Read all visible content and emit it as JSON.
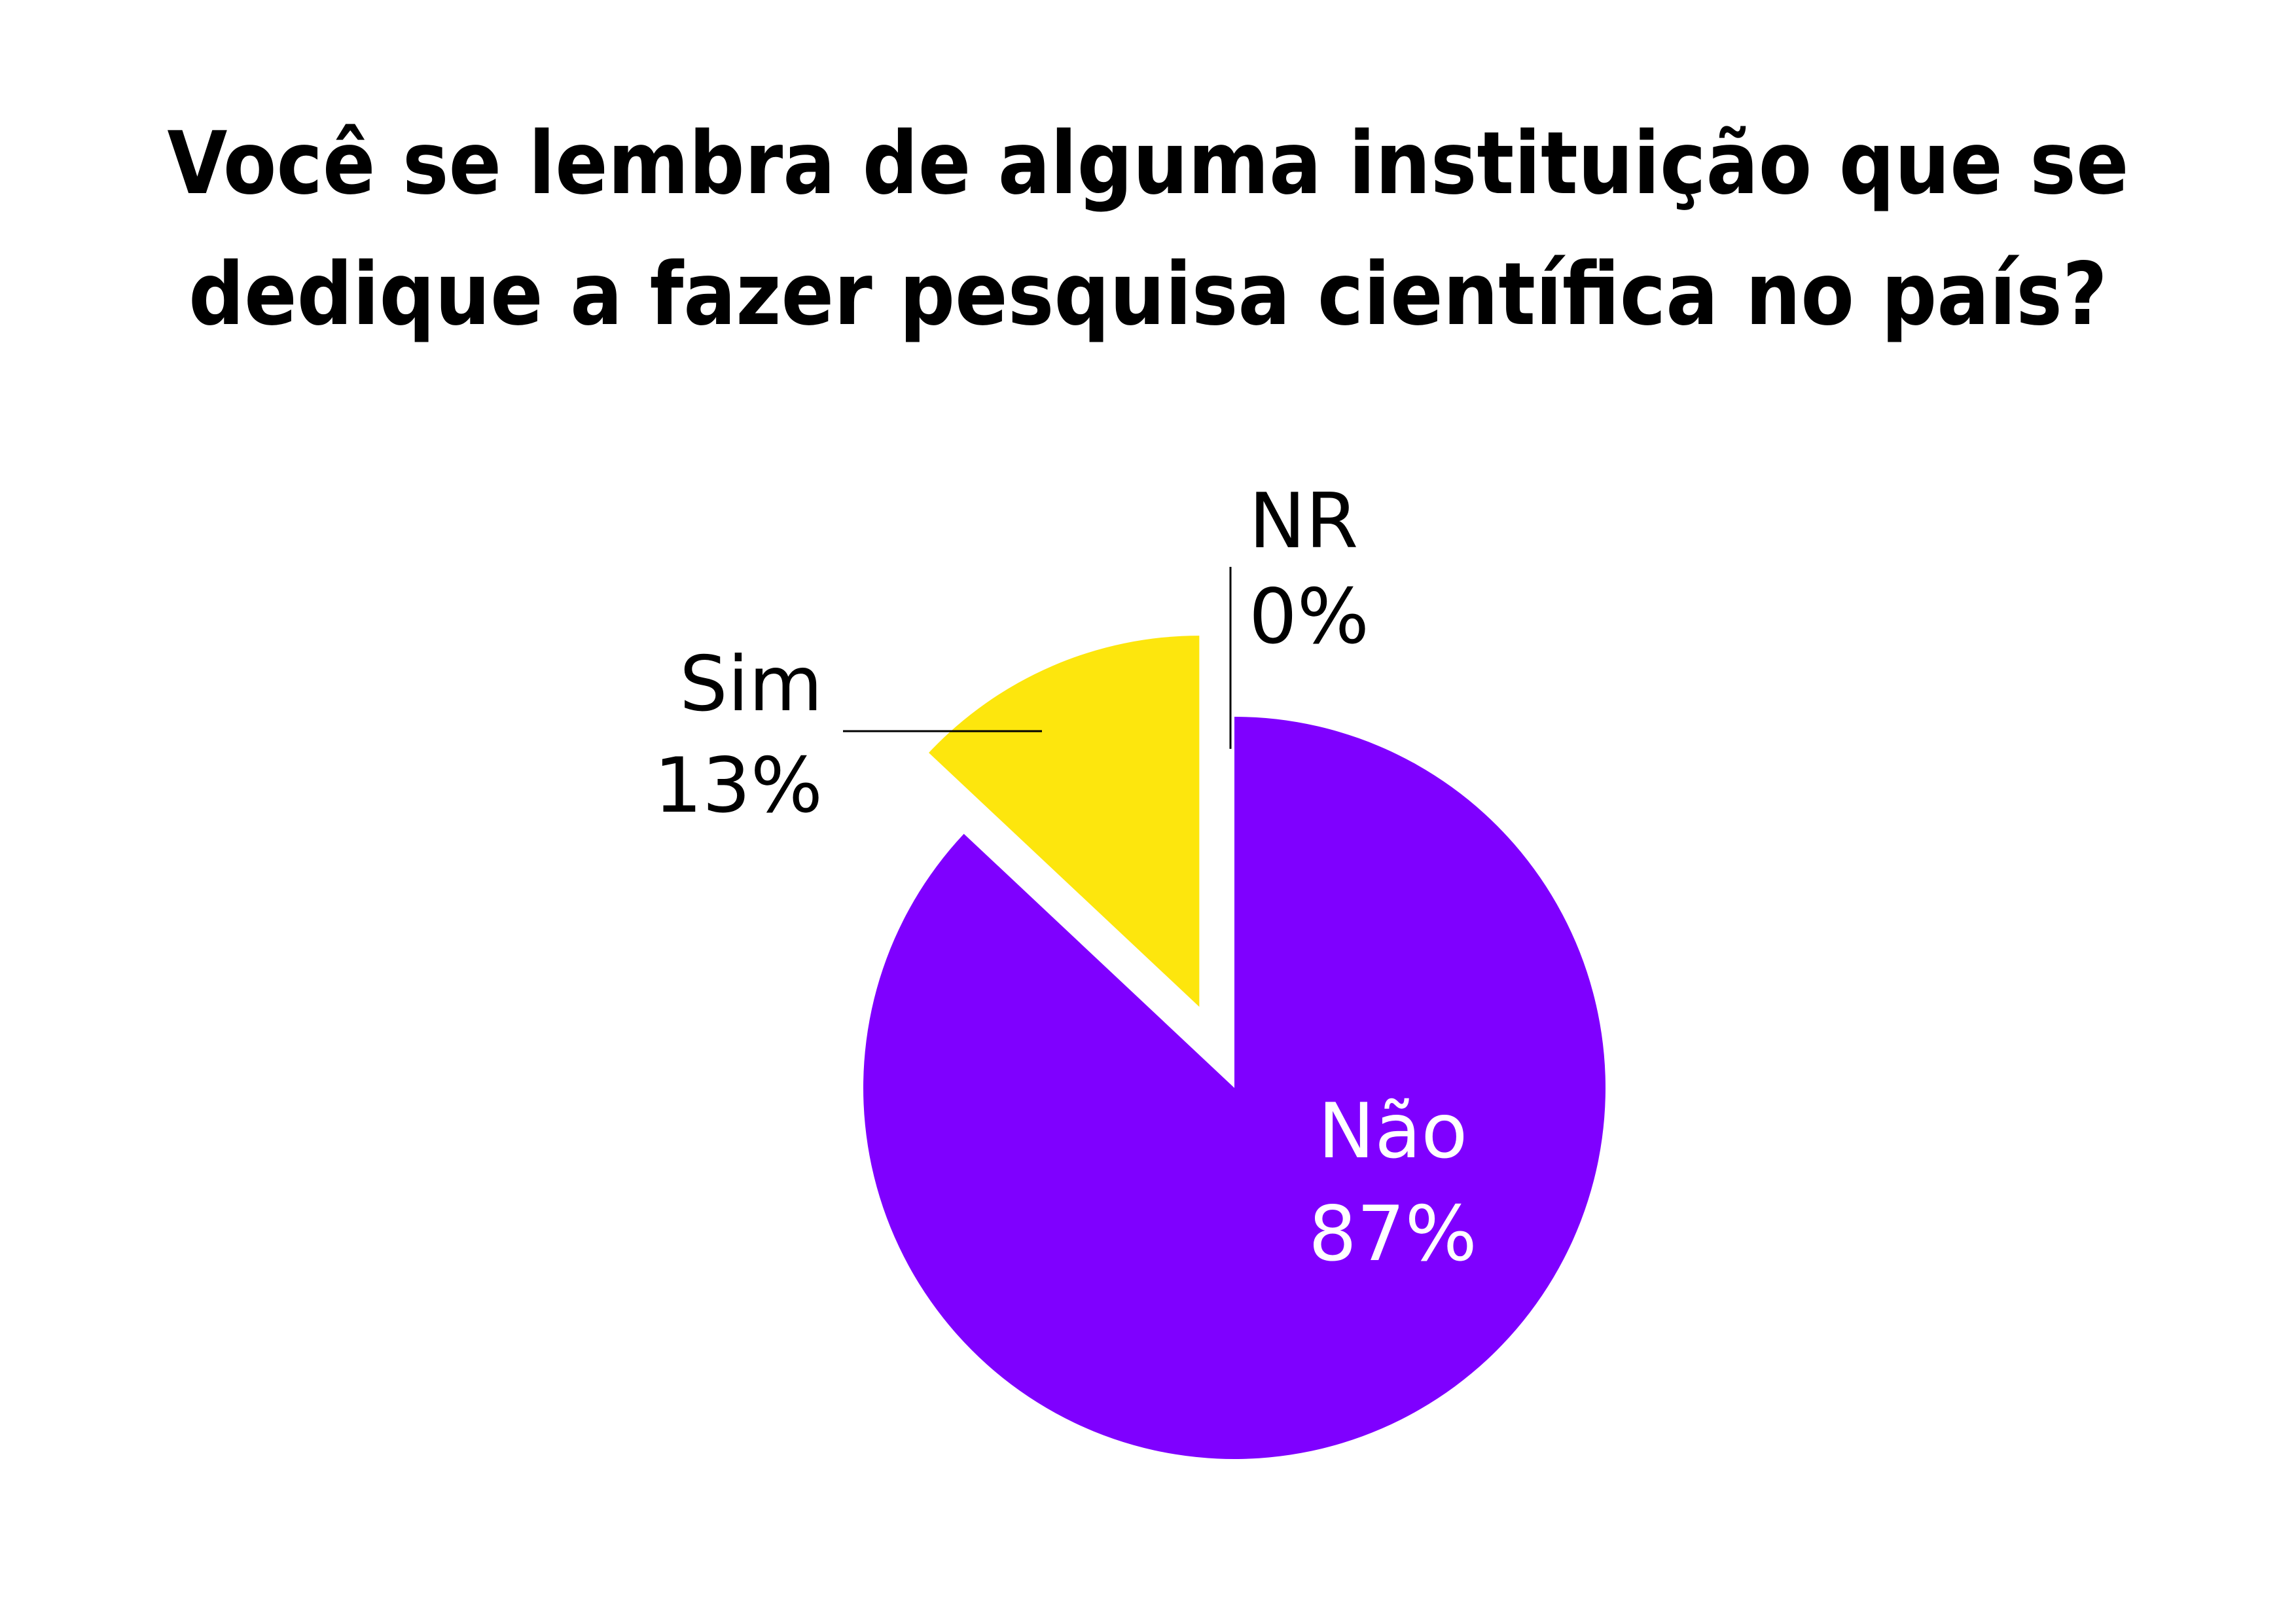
{
  "title_lines": [
    "Você se lembra de alguma instituição que se",
    "dedique a fazer pesquisa científica no país?"
  ],
  "chart_data": {
    "type": "pie",
    "title": "Você se lembra de alguma instituição que se dedique a fazer pesquisa científica no país?",
    "slices": [
      {
        "label": "Não",
        "value": 87,
        "value_label": "87%",
        "color": "#7f00ff",
        "text_color": "#ffffff"
      },
      {
        "label": "Sim",
        "value": 13,
        "value_label": "13%",
        "color": "#fde60d",
        "text_color": "#000000",
        "exploded": true
      },
      {
        "label": "NR",
        "value": 0,
        "value_label": "0%",
        "color": "#cccccc",
        "text_color": "#000000"
      }
    ],
    "legend": "none"
  }
}
